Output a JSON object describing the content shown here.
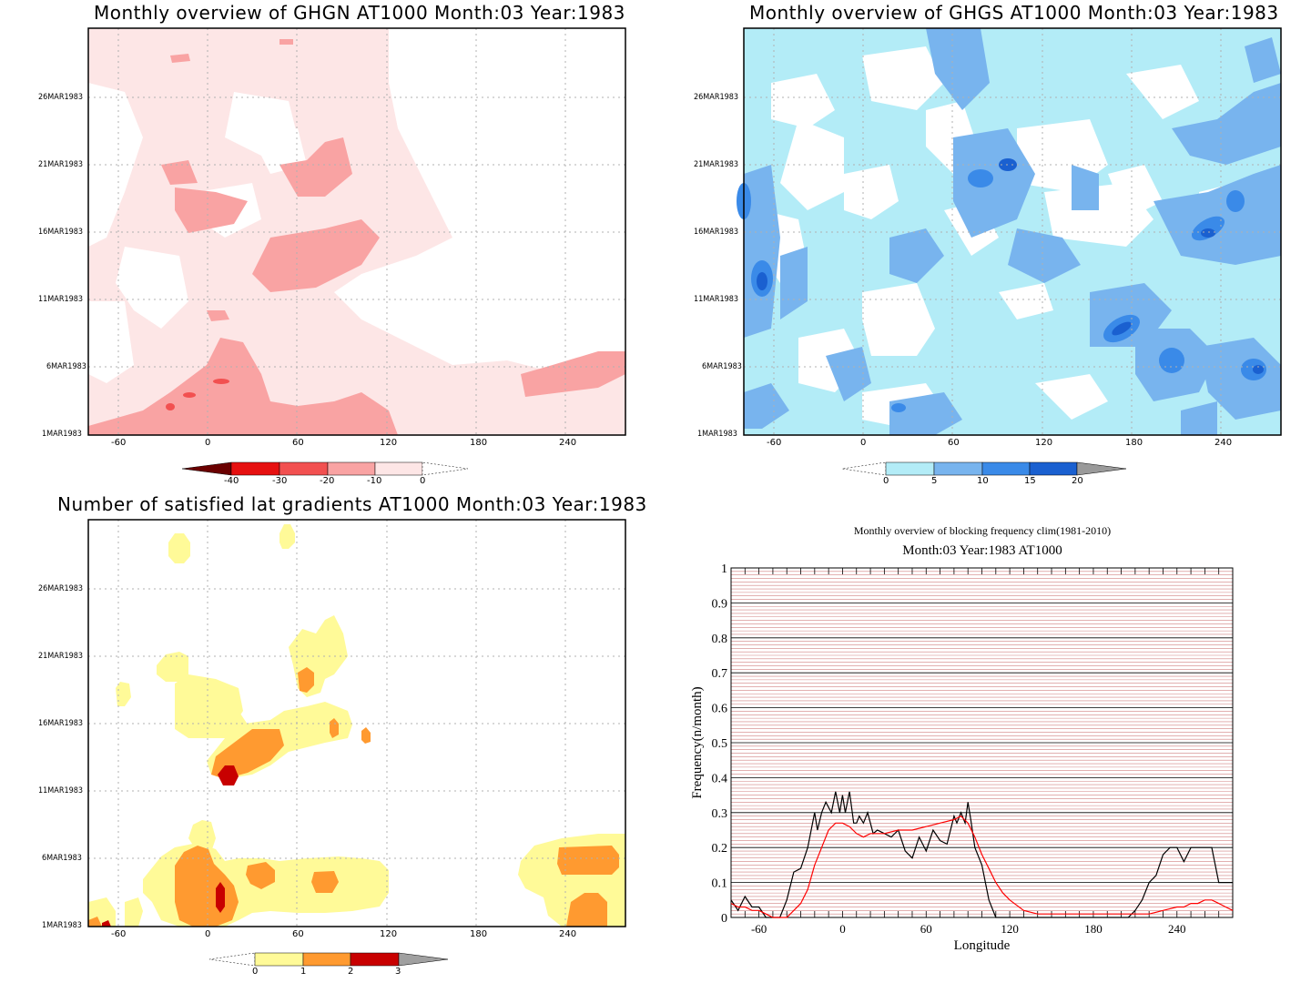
{
  "chart_data": [
    {
      "type": "heatmap",
      "title": "Monthly overview of GHGN AT1000 Month:03 Year:1983",
      "x_ticks": [
        "-60",
        "0",
        "60",
        "120",
        "180",
        "240"
      ],
      "y_ticks": [
        "1MAR1983",
        "6MAR1983",
        "11MAR1983",
        "16MAR1983",
        "21MAR1983",
        "26MAR1983"
      ],
      "colorbar": {
        "labels": [
          "-40",
          "-30",
          "-20",
          "-10",
          "0"
        ],
        "colors": [
          "#6b0000",
          "#e61010",
          "#f25050",
          "#f9a3a3",
          "#fde6e6",
          "#ffffff"
        ]
      }
    },
    {
      "type": "heatmap",
      "title": "Monthly overview of GHGS AT1000 Month:03 Year:1983",
      "x_ticks": [
        "-60",
        "0",
        "60",
        "120",
        "180",
        "240"
      ],
      "y_ticks": [
        "1MAR1983",
        "6MAR1983",
        "11MAR1983",
        "16MAR1983",
        "21MAR1983",
        "26MAR1983"
      ],
      "colorbar": {
        "labels": [
          "0",
          "5",
          "10",
          "15",
          "20"
        ],
        "colors": [
          "#ffffff",
          "#b3ecf7",
          "#78b4ee",
          "#3a8ae8",
          "#1a60d0",
          "#9a9a9a"
        ]
      }
    },
    {
      "type": "heatmap",
      "title": "Number of satisfied lat gradients AT1000 Month:03 Year:1983",
      "x_ticks": [
        "-60",
        "0",
        "60",
        "120",
        "180",
        "240"
      ],
      "y_ticks": [
        "1MAR1983",
        "6MAR1983",
        "11MAR1983",
        "16MAR1983",
        "21MAR1983",
        "26MAR1983"
      ],
      "colorbar": {
        "labels": [
          "0",
          "1",
          "2",
          "3"
        ],
        "colors": [
          "#ffffff",
          "#fffa98",
          "#ff9a30",
          "#c80000",
          "#a0a0a0"
        ]
      }
    },
    {
      "type": "line",
      "title": "Monthly overview of blocking frequency clim(1981-2010)",
      "subtitle": "Month:03 Year:1983  AT1000",
      "xlabel": "Longitude",
      "ylabel": "Frequency(n/month)",
      "x_ticks": [
        "-60",
        "0",
        "60",
        "120",
        "180",
        "240"
      ],
      "y_ticks": [
        "0",
        "0.1",
        "0.2",
        "0.3",
        "0.4",
        "0.5",
        "0.6",
        "0.7",
        "0.8",
        "0.9",
        "1"
      ],
      "xlim": [
        -80,
        280
      ],
      "ylim": [
        0,
        1
      ],
      "series": [
        {
          "color": "#000000",
          "x": [
            -80,
            -75,
            -70,
            -65,
            -60,
            -55,
            -50,
            -45,
            -40,
            -35,
            -30,
            -25,
            -20,
            -18,
            -15,
            -12,
            -8,
            -5,
            -2,
            0,
            2,
            5,
            8,
            10,
            12,
            15,
            18,
            22,
            25,
            30,
            35,
            40,
            45,
            50,
            55,
            60,
            65,
            70,
            75,
            80,
            82,
            85,
            88,
            90,
            92,
            95,
            100,
            105,
            110,
            115,
            120,
            125,
            130,
            140,
            150,
            160,
            170,
            180,
            190,
            200,
            205,
            210,
            215,
            220,
            225,
            230,
            235,
            240,
            245,
            250,
            255,
            260,
            265,
            270,
            275,
            280
          ],
          "values": [
            0.05,
            0.02,
            0.06,
            0.03,
            0.03,
            0.0,
            0.0,
            0.0,
            0.05,
            0.13,
            0.14,
            0.2,
            0.3,
            0.25,
            0.3,
            0.33,
            0.3,
            0.36,
            0.3,
            0.35,
            0.3,
            0.36,
            0.27,
            0.27,
            0.29,
            0.27,
            0.3,
            0.24,
            0.25,
            0.24,
            0.23,
            0.25,
            0.19,
            0.17,
            0.23,
            0.19,
            0.25,
            0.22,
            0.21,
            0.29,
            0.27,
            0.3,
            0.27,
            0.33,
            0.28,
            0.2,
            0.15,
            0.05,
            0.0,
            0.0,
            0.0,
            0.0,
            0.0,
            0.0,
            0.0,
            0.0,
            0.0,
            0.0,
            0.0,
            0.0,
            0.0,
            0.02,
            0.05,
            0.1,
            0.12,
            0.18,
            0.2,
            0.2,
            0.16,
            0.2,
            0.2,
            0.2,
            0.2,
            0.1,
            0.1,
            0.1
          ]
        },
        {
          "color": "#ff0000",
          "x": [
            -80,
            -75,
            -70,
            -65,
            -60,
            -55,
            -50,
            -45,
            -40,
            -35,
            -30,
            -25,
            -20,
            -15,
            -10,
            -5,
            0,
            5,
            10,
            15,
            20,
            25,
            30,
            40,
            50,
            60,
            70,
            80,
            85,
            90,
            95,
            100,
            105,
            110,
            115,
            120,
            130,
            140,
            150,
            160,
            170,
            180,
            190,
            200,
            210,
            220,
            230,
            240,
            245,
            250,
            255,
            260,
            265,
            270,
            275,
            280
          ],
          "values": [
            0.04,
            0.03,
            0.03,
            0.02,
            0.02,
            0.01,
            0.0,
            0.0,
            0.0,
            0.02,
            0.04,
            0.08,
            0.15,
            0.2,
            0.25,
            0.27,
            0.27,
            0.26,
            0.24,
            0.23,
            0.24,
            0.24,
            0.24,
            0.25,
            0.25,
            0.26,
            0.27,
            0.28,
            0.29,
            0.27,
            0.23,
            0.18,
            0.14,
            0.1,
            0.07,
            0.05,
            0.02,
            0.01,
            0.01,
            0.01,
            0.01,
            0.01,
            0.01,
            0.01,
            0.01,
            0.01,
            0.02,
            0.03,
            0.03,
            0.04,
            0.04,
            0.05,
            0.05,
            0.04,
            0.03,
            0.02
          ]
        }
      ]
    }
  ]
}
